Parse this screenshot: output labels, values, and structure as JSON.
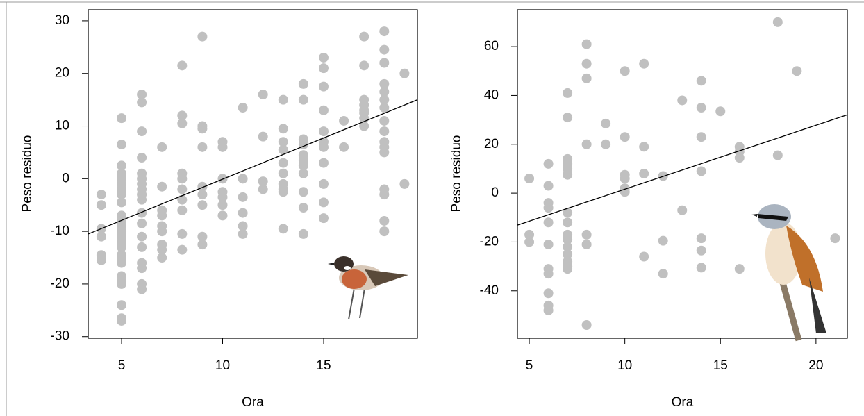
{
  "chart_data": [
    {
      "type": "scatter",
      "x_label": "Ora",
      "y_label": "Peso residuo",
      "color": "#c0c0c0",
      "xlim": [
        3.35,
        19.64
      ],
      "ylim": [
        -30.3,
        32.1
      ],
      "xticks": [
        5,
        10,
        15
      ],
      "yticks": [
        -30,
        -20,
        -10,
        0,
        10,
        20,
        30
      ],
      "x": [
        4,
        4,
        4,
        4,
        4,
        4,
        5,
        5,
        5,
        5,
        5,
        5,
        5,
        5,
        5,
        5,
        5,
        5,
        5,
        5,
        5,
        5,
        5,
        5,
        5,
        5,
        5,
        5,
        5,
        5,
        5,
        6,
        6,
        6,
        6,
        6,
        6,
        6,
        6,
        6,
        6,
        6,
        6,
        6,
        6,
        6,
        6,
        6,
        6,
        7,
        7,
        7,
        7,
        7,
        7,
        7,
        7,
        7,
        8,
        8,
        8,
        8,
        8,
        8,
        8,
        8,
        8,
        8,
        9,
        9,
        9,
        9,
        9,
        9,
        9,
        9,
        9,
        10,
        10,
        10,
        10,
        10,
        10,
        10,
        11,
        11,
        11,
        11,
        11,
        11,
        12,
        12,
        12,
        12,
        13,
        13,
        13,
        13,
        13,
        13,
        13,
        13,
        13,
        13,
        14,
        14,
        14,
        14,
        14,
        14,
        14,
        14,
        14,
        14,
        14,
        15,
        15,
        15,
        15,
        15,
        15,
        15,
        15,
        15,
        15,
        15,
        16,
        16,
        17,
        17,
        17,
        17,
        17,
        17,
        17,
        17,
        18,
        18,
        18,
        18,
        18,
        18,
        18,
        18,
        18,
        18,
        18,
        18,
        18,
        18,
        18,
        18,
        19,
        19
      ],
      "values": [
        -3,
        -5,
        -9.5,
        -11,
        -14.5,
        -15.5,
        11.5,
        6.5,
        2.5,
        1,
        0,
        -1,
        -2,
        -3,
        -4.5,
        -7,
        -8,
        -9,
        -10,
        -11,
        -12,
        -13,
        -14.5,
        -15,
        -16,
        -18.5,
        -19.5,
        -20,
        -24,
        -26.5,
        -27,
        16,
        14.5,
        9,
        4,
        1,
        0,
        -1,
        -2,
        -3,
        -4,
        -6.5,
        -8.5,
        -11,
        -13,
        -16,
        -17,
        -20,
        -21,
        6,
        -1.5,
        -6,
        -7,
        -9,
        -10,
        -12.5,
        -13.5,
        -15,
        21.5,
        12,
        10.5,
        1,
        0,
        -2,
        -4,
        -6,
        -10.5,
        -13.5,
        27,
        10,
        9.5,
        6,
        -1.5,
        -3,
        -5,
        -11,
        -12.5,
        7,
        6,
        0,
        -2.5,
        -3.5,
        -5,
        -7,
        13.5,
        0,
        -3.5,
        -6.5,
        -9,
        -10.5,
        16,
        8,
        -0.5,
        -2,
        15,
        9.5,
        7,
        5.5,
        3,
        1,
        -1,
        -2,
        -2.5,
        -9.5,
        18,
        15,
        7.5,
        6.5,
        4.5,
        3.5,
        2.5,
        1,
        -2.5,
        -5.5,
        -10.5,
        23,
        21,
        17.5,
        13,
        9,
        7,
        6,
        3,
        -1,
        -4.5,
        -7.5,
        11,
        6,
        27,
        21.5,
        15,
        14,
        13,
        12.5,
        11.5,
        10,
        28,
        24.5,
        22,
        18,
        16.5,
        15,
        13.5,
        11,
        9,
        7,
        6,
        5,
        -2,
        -3,
        -8,
        -10,
        20,
        -1
      ],
      "fit": {
        "x": [
          3.35,
          19.64
        ],
        "y": [
          -10.5,
          15.0
        ]
      }
    },
    {
      "type": "scatter",
      "x_label": "Ora",
      "y_label": "Peso residuo",
      "color": "#c0c0c0",
      "xlim": [
        4.38,
        21.64
      ],
      "ylim": [
        -59.4,
        75.1
      ],
      "xticks": [
        5,
        10,
        15,
        20
      ],
      "yticks": [
        -40,
        -20,
        0,
        20,
        40,
        60
      ],
      "x": [
        5,
        5,
        5,
        6,
        6,
        6,
        6,
        6,
        6,
        6,
        6,
        6,
        6,
        6,
        7,
        7,
        7,
        7,
        7,
        7,
        7,
        7,
        7,
        7,
        7,
        7,
        7,
        7,
        7,
        8,
        8,
        8,
        8,
        8,
        8,
        8,
        9,
        9,
        10,
        10,
        10,
        10,
        10,
        10,
        11,
        11,
        11,
        11,
        12,
        12,
        12,
        13,
        13,
        14,
        14,
        14,
        14,
        14,
        14,
        14,
        15,
        16,
        16,
        16,
        16,
        18,
        18,
        19,
        21
      ],
      "values": [
        6,
        -17,
        -20,
        12,
        3,
        -4,
        -6,
        -12,
        -21,
        -31,
        -33,
        -41,
        -46,
        -48,
        41,
        31,
        14,
        12,
        10,
        7.5,
        -8,
        -12,
        -17,
        -19,
        -22,
        -25,
        -28,
        -30,
        -31,
        61,
        53,
        47,
        20,
        -17,
        -21,
        -54,
        28.5,
        20,
        50,
        23,
        7.5,
        6,
        2,
        0.5,
        53,
        19,
        8,
        -26,
        7,
        -19.5,
        -33,
        38,
        -7,
        46,
        35,
        23,
        9,
        -18.5,
        -23.5,
        -30.5,
        33.5,
        19,
        17,
        14.5,
        -31,
        70,
        15.5,
        50,
        -18.5
      ],
      "fit": {
        "x": [
          4.38,
          21.64
        ],
        "y": [
          -13.1,
          32.1
        ]
      }
    }
  ]
}
